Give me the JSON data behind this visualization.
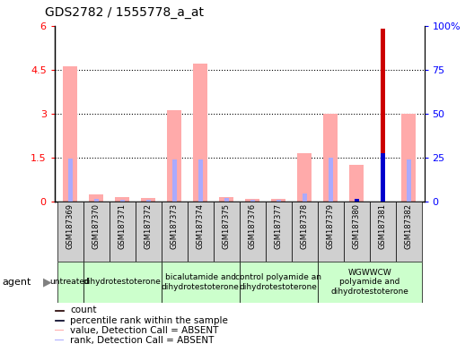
{
  "title": "GDS2782 / 1555778_a_at",
  "samples": [
    "GSM187369",
    "GSM187370",
    "GSM187371",
    "GSM187372",
    "GSM187373",
    "GSM187374",
    "GSM187375",
    "GSM187376",
    "GSM187377",
    "GSM187378",
    "GSM187379",
    "GSM187380",
    "GSM187381",
    "GSM187382"
  ],
  "value_absent": [
    4.6,
    0.22,
    0.15,
    0.12,
    3.1,
    4.7,
    0.15,
    0.07,
    0.08,
    1.65,
    3.0,
    1.25,
    0.0,
    3.0
  ],
  "rank_absent": [
    1.45,
    0.08,
    0.05,
    0.04,
    1.42,
    1.42,
    0.12,
    0.05,
    0.05,
    0.27,
    1.5,
    0.06,
    0.0,
    1.42
  ],
  "count_present": [
    0,
    0,
    0,
    0,
    0,
    0,
    0,
    0,
    0,
    0,
    0,
    0,
    5.9,
    0
  ],
  "percentile_rank_present": [
    0,
    0,
    0,
    0,
    0,
    0,
    0,
    0,
    0,
    0,
    0,
    0.09,
    1.65,
    0
  ],
  "ylim_left": [
    0,
    6
  ],
  "ylim_right": [
    0,
    100
  ],
  "yticks_left": [
    0,
    1.5,
    3.0,
    4.5,
    6
  ],
  "yticks_right": [
    0,
    25,
    50,
    75,
    100
  ],
  "ytick_labels_left": [
    "0",
    "1.5",
    "3",
    "4.5",
    "6"
  ],
  "ytick_labels_right": [
    "0",
    "25",
    "50",
    "75",
    "100%"
  ],
  "groups": [
    {
      "label": "untreated",
      "start": 0,
      "end": 1,
      "color": "#ccffcc"
    },
    {
      "label": "dihydrotestoterone",
      "start": 1,
      "end": 4,
      "color": "#ccffcc"
    },
    {
      "label": "bicalutamide and\ndihydrotestoterone",
      "start": 4,
      "end": 7,
      "color": "#ccffcc"
    },
    {
      "label": "control polyamide an\ndihydrotestoterone",
      "start": 7,
      "end": 10,
      "color": "#ccffcc"
    },
    {
      "label": "WGWWCW\npolyamide and\ndihydrotestoterone",
      "start": 10,
      "end": 14,
      "color": "#ccffcc"
    }
  ],
  "color_count": "#cc0000",
  "color_percentile": "#0000cc",
  "color_value_absent": "#ffaaaa",
  "color_rank_absent": "#aaaaff",
  "legend_items": [
    {
      "color": "#cc0000",
      "label": "count"
    },
    {
      "color": "#0000cc",
      "label": "percentile rank within the sample"
    },
    {
      "color": "#ffaaaa",
      "label": "value, Detection Call = ABSENT"
    },
    {
      "color": "#aaaaff",
      "label": "rank, Detection Call = ABSENT"
    }
  ]
}
